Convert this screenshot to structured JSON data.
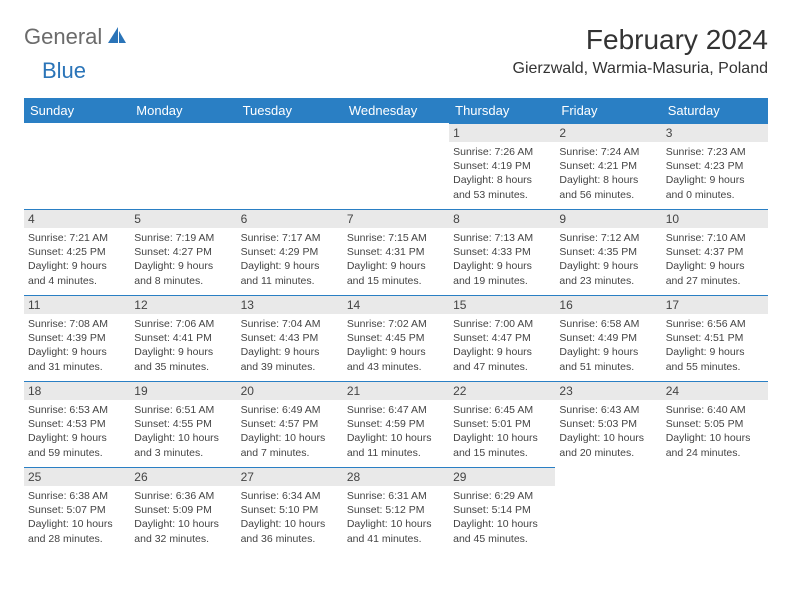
{
  "logo": {
    "text_general": "General",
    "text_blue": "Blue"
  },
  "title": "February 2024",
  "location": "Gierzwald, Warmia-Masuria, Poland",
  "colors": {
    "header_bg": "#2a7fc4",
    "header_text": "#ffffff",
    "daynum_bg": "#e9e9e9",
    "daynum_border": "#2a7fc4",
    "body_text": "#444444",
    "logo_blue": "#2a74b8",
    "logo_gray": "#6b6b6b"
  },
  "fonts": {
    "title_size_pt": 21,
    "location_size_pt": 12,
    "header_size_pt": 10,
    "daynum_size_pt": 9,
    "info_size_pt": 8
  },
  "day_headers": [
    "Sunday",
    "Monday",
    "Tuesday",
    "Wednesday",
    "Thursday",
    "Friday",
    "Saturday"
  ],
  "weeks": [
    [
      null,
      null,
      null,
      null,
      {
        "num": "1",
        "sunrise": "Sunrise: 7:26 AM",
        "sunset": "Sunset: 4:19 PM",
        "daylight": "Daylight: 8 hours and 53 minutes."
      },
      {
        "num": "2",
        "sunrise": "Sunrise: 7:24 AM",
        "sunset": "Sunset: 4:21 PM",
        "daylight": "Daylight: 8 hours and 56 minutes."
      },
      {
        "num": "3",
        "sunrise": "Sunrise: 7:23 AM",
        "sunset": "Sunset: 4:23 PM",
        "daylight": "Daylight: 9 hours and 0 minutes."
      }
    ],
    [
      {
        "num": "4",
        "sunrise": "Sunrise: 7:21 AM",
        "sunset": "Sunset: 4:25 PM",
        "daylight": "Daylight: 9 hours and 4 minutes."
      },
      {
        "num": "5",
        "sunrise": "Sunrise: 7:19 AM",
        "sunset": "Sunset: 4:27 PM",
        "daylight": "Daylight: 9 hours and 8 minutes."
      },
      {
        "num": "6",
        "sunrise": "Sunrise: 7:17 AM",
        "sunset": "Sunset: 4:29 PM",
        "daylight": "Daylight: 9 hours and 11 minutes."
      },
      {
        "num": "7",
        "sunrise": "Sunrise: 7:15 AM",
        "sunset": "Sunset: 4:31 PM",
        "daylight": "Daylight: 9 hours and 15 minutes."
      },
      {
        "num": "8",
        "sunrise": "Sunrise: 7:13 AM",
        "sunset": "Sunset: 4:33 PM",
        "daylight": "Daylight: 9 hours and 19 minutes."
      },
      {
        "num": "9",
        "sunrise": "Sunrise: 7:12 AM",
        "sunset": "Sunset: 4:35 PM",
        "daylight": "Daylight: 9 hours and 23 minutes."
      },
      {
        "num": "10",
        "sunrise": "Sunrise: 7:10 AM",
        "sunset": "Sunset: 4:37 PM",
        "daylight": "Daylight: 9 hours and 27 minutes."
      }
    ],
    [
      {
        "num": "11",
        "sunrise": "Sunrise: 7:08 AM",
        "sunset": "Sunset: 4:39 PM",
        "daylight": "Daylight: 9 hours and 31 minutes."
      },
      {
        "num": "12",
        "sunrise": "Sunrise: 7:06 AM",
        "sunset": "Sunset: 4:41 PM",
        "daylight": "Daylight: 9 hours and 35 minutes."
      },
      {
        "num": "13",
        "sunrise": "Sunrise: 7:04 AM",
        "sunset": "Sunset: 4:43 PM",
        "daylight": "Daylight: 9 hours and 39 minutes."
      },
      {
        "num": "14",
        "sunrise": "Sunrise: 7:02 AM",
        "sunset": "Sunset: 4:45 PM",
        "daylight": "Daylight: 9 hours and 43 minutes."
      },
      {
        "num": "15",
        "sunrise": "Sunrise: 7:00 AM",
        "sunset": "Sunset: 4:47 PM",
        "daylight": "Daylight: 9 hours and 47 minutes."
      },
      {
        "num": "16",
        "sunrise": "Sunrise: 6:58 AM",
        "sunset": "Sunset: 4:49 PM",
        "daylight": "Daylight: 9 hours and 51 minutes."
      },
      {
        "num": "17",
        "sunrise": "Sunrise: 6:56 AM",
        "sunset": "Sunset: 4:51 PM",
        "daylight": "Daylight: 9 hours and 55 minutes."
      }
    ],
    [
      {
        "num": "18",
        "sunrise": "Sunrise: 6:53 AM",
        "sunset": "Sunset: 4:53 PM",
        "daylight": "Daylight: 9 hours and 59 minutes."
      },
      {
        "num": "19",
        "sunrise": "Sunrise: 6:51 AM",
        "sunset": "Sunset: 4:55 PM",
        "daylight": "Daylight: 10 hours and 3 minutes."
      },
      {
        "num": "20",
        "sunrise": "Sunrise: 6:49 AM",
        "sunset": "Sunset: 4:57 PM",
        "daylight": "Daylight: 10 hours and 7 minutes."
      },
      {
        "num": "21",
        "sunrise": "Sunrise: 6:47 AM",
        "sunset": "Sunset: 4:59 PM",
        "daylight": "Daylight: 10 hours and 11 minutes."
      },
      {
        "num": "22",
        "sunrise": "Sunrise: 6:45 AM",
        "sunset": "Sunset: 5:01 PM",
        "daylight": "Daylight: 10 hours and 15 minutes."
      },
      {
        "num": "23",
        "sunrise": "Sunrise: 6:43 AM",
        "sunset": "Sunset: 5:03 PM",
        "daylight": "Daylight: 10 hours and 20 minutes."
      },
      {
        "num": "24",
        "sunrise": "Sunrise: 6:40 AM",
        "sunset": "Sunset: 5:05 PM",
        "daylight": "Daylight: 10 hours and 24 minutes."
      }
    ],
    [
      {
        "num": "25",
        "sunrise": "Sunrise: 6:38 AM",
        "sunset": "Sunset: 5:07 PM",
        "daylight": "Daylight: 10 hours and 28 minutes."
      },
      {
        "num": "26",
        "sunrise": "Sunrise: 6:36 AM",
        "sunset": "Sunset: 5:09 PM",
        "daylight": "Daylight: 10 hours and 32 minutes."
      },
      {
        "num": "27",
        "sunrise": "Sunrise: 6:34 AM",
        "sunset": "Sunset: 5:10 PM",
        "daylight": "Daylight: 10 hours and 36 minutes."
      },
      {
        "num": "28",
        "sunrise": "Sunrise: 6:31 AM",
        "sunset": "Sunset: 5:12 PM",
        "daylight": "Daylight: 10 hours and 41 minutes."
      },
      {
        "num": "29",
        "sunrise": "Sunrise: 6:29 AM",
        "sunset": "Sunset: 5:14 PM",
        "daylight": "Daylight: 10 hours and 45 minutes."
      },
      null,
      null
    ]
  ]
}
